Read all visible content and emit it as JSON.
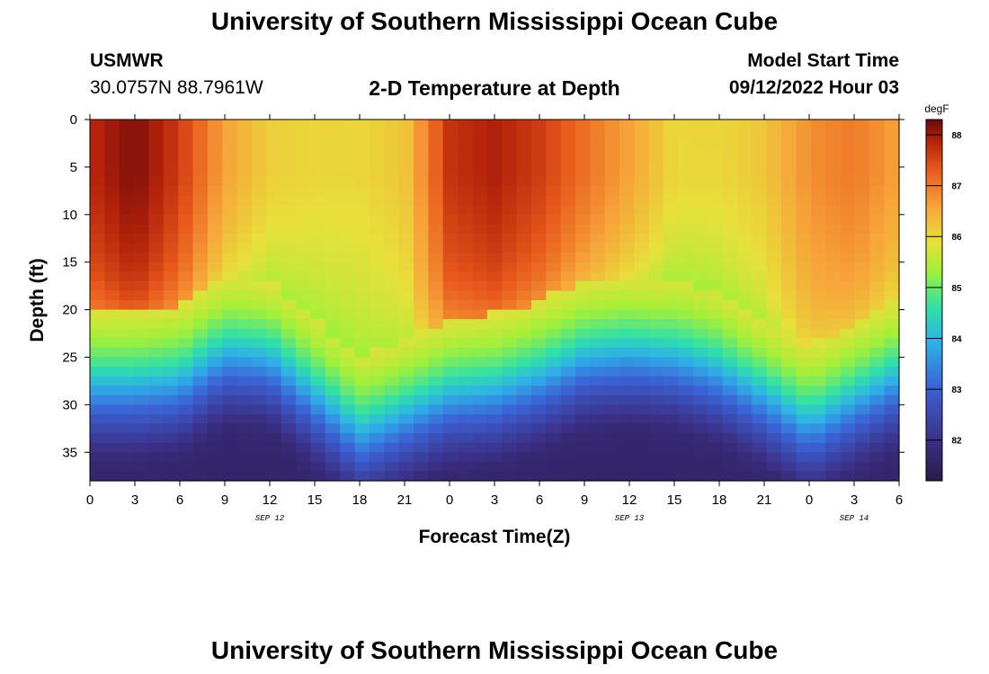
{
  "page": {
    "title": "University of Southern Mississippi Ocean Cube",
    "footer_title": "University of Southern Mississippi Ocean Cube"
  },
  "header": {
    "station": "USMWR",
    "coords": "30.0757N  88.7961W",
    "subtitle": "2-D Temperature at Depth",
    "model_label": "Model Start Time",
    "model_time": "09/12/2022 Hour 03"
  },
  "chart_data": {
    "type": "heatmap",
    "title": "2-D Temperature at Depth",
    "xlabel": "Forecast Time(Z)",
    "ylabel": "Depth (ft)",
    "xlim": [
      0,
      54
    ],
    "ylim": [
      38,
      0
    ],
    "x_ticks": [
      0,
      3,
      6,
      9,
      12,
      15,
      18,
      21,
      24,
      27,
      30,
      33,
      36,
      39,
      42,
      45,
      48,
      51,
      54
    ],
    "x_tick_labels": [
      "0",
      "3",
      "6",
      "9",
      "12",
      "15",
      "18",
      "21",
      "0",
      "3",
      "6",
      "9",
      "12",
      "15",
      "18",
      "21",
      "0",
      "3",
      "6"
    ],
    "y_ticks": [
      0,
      5,
      10,
      15,
      20,
      25,
      30,
      35
    ],
    "y_tick_labels": [
      "0",
      "5",
      "10",
      "15",
      "20",
      "25",
      "30",
      "35"
    ],
    "date_labels": [
      {
        "label": "SEP 12",
        "x": 12
      },
      {
        "label": "SEP 13",
        "x": 36
      },
      {
        "label": "SEP 14",
        "x": 51
      }
    ],
    "colorbar": {
      "units": "degF",
      "min": 81.2,
      "max": 88.3,
      "ticks": [
        82,
        83,
        84,
        85,
        86,
        87,
        88
      ],
      "tick_labels": [
        "82",
        "83",
        "84",
        "85",
        "86",
        "87",
        "88"
      ]
    },
    "surface_temp_profile": {
      "hours": [
        0,
        3,
        6,
        9,
        12,
        15,
        18,
        21,
        24,
        27,
        30,
        33,
        36,
        39,
        42,
        45,
        48,
        51,
        54
      ],
      "values_degF": [
        87.8,
        88.2,
        87.6,
        86.6,
        86.1,
        86.0,
        86.0,
        86.2,
        87.7,
        87.9,
        87.6,
        87.1,
        86.6,
        86.0,
        86.0,
        86.2,
        86.8,
        87.0,
        86.6
      ]
    },
    "thermocline_depth_ft": {
      "hours": [
        0,
        3,
        6,
        9,
        12,
        15,
        18,
        21,
        24,
        27,
        30,
        33,
        36,
        39,
        42,
        45,
        48,
        51,
        54
      ],
      "values": [
        26,
        26,
        25.5,
        22.5,
        23,
        27,
        31,
        29,
        27,
        26.5,
        25,
        23,
        22.5,
        23,
        24.5,
        27,
        30,
        27.5,
        25
      ]
    },
    "bottom_temp_degF": 81.6
  }
}
